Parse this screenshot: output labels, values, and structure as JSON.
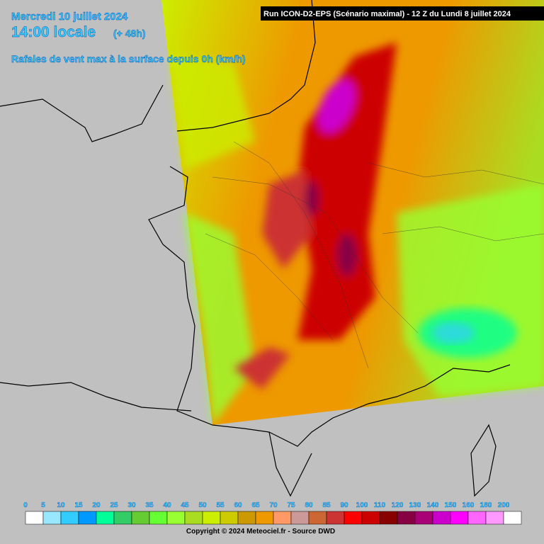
{
  "header": {
    "date": "Mercredi 10 juillet 2024",
    "time": "14:00 locale",
    "lead": "(+ 48h)",
    "subtitle": "Rafales de vent max à la surface depuis 0h (km/h)",
    "run": "Run ICON-D2-EPS (Scénario maximal) - 12 Z du Lundi 8 juillet 2024"
  },
  "legend": {
    "stops": [
      {
        "value": 0,
        "color": "#ffffff"
      },
      {
        "value": 5,
        "color": "#99e6ff"
      },
      {
        "value": 10,
        "color": "#33ccff"
      },
      {
        "value": 15,
        "color": "#0099ff"
      },
      {
        "value": 20,
        "color": "#00ff99"
      },
      {
        "value": 25,
        "color": "#33cc66"
      },
      {
        "value": 30,
        "color": "#66cc33"
      },
      {
        "value": 35,
        "color": "#66ff33"
      },
      {
        "value": 40,
        "color": "#99ff33"
      },
      {
        "value": 45,
        "color": "#aadd22"
      },
      {
        "value": 50,
        "color": "#ccee00"
      },
      {
        "value": 55,
        "color": "#cccc00"
      },
      {
        "value": 60,
        "color": "#cc9900"
      },
      {
        "value": 65,
        "color": "#ee9900"
      },
      {
        "value": 70,
        "color": "#ff9966"
      },
      {
        "value": 75,
        "color": "#cc9999"
      },
      {
        "value": 80,
        "color": "#cc6633"
      },
      {
        "value": 85,
        "color": "#cc3333"
      },
      {
        "value": 90,
        "color": "#ff0000"
      },
      {
        "value": 100,
        "color": "#cc0000"
      },
      {
        "value": 110,
        "color": "#880000"
      },
      {
        "value": 120,
        "color": "#880044"
      },
      {
        "value": 130,
        "color": "#aa0077"
      },
      {
        "value": 140,
        "color": "#cc00cc"
      },
      {
        "value": 150,
        "color": "#ff00ff"
      },
      {
        "value": 160,
        "color": "#ff66ff"
      },
      {
        "value": 180,
        "color": "#ff99ff"
      },
      {
        "value": 200,
        "color": "#ffffff"
      }
    ]
  },
  "footer": {
    "copyright": "Copyright © 2024 Meteociel.fr - Source DWD"
  }
}
